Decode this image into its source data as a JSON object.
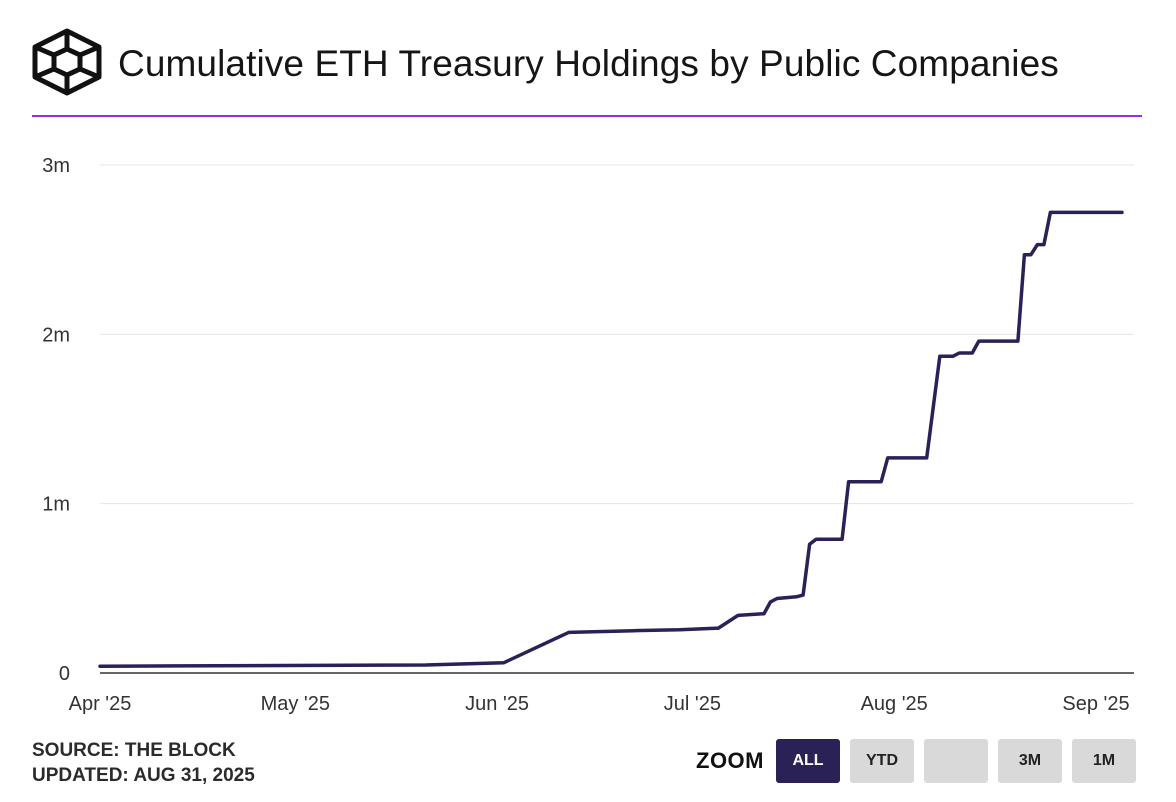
{
  "header": {
    "title": "Cumulative ETH Treasury Holdings by Public Companies",
    "logo_icon": "the-block-cube-icon"
  },
  "colors": {
    "line": "#2a2157",
    "accent_rule": "#9b2fe0",
    "grid": "#e4e4e4",
    "zoom_active_bg": "#2a2157",
    "zoom_bg": "#d9d9d9"
  },
  "chart_data": {
    "type": "line",
    "title": "Cumulative ETH Treasury Holdings by Public Companies",
    "xlabel": "",
    "ylabel": "",
    "xlim": [
      "2025-04-01",
      "2025-09-01"
    ],
    "ylim": [
      0,
      3000000
    ],
    "grid": true,
    "legend": "none",
    "y_ticks": [
      {
        "value": 0,
        "label": "0"
      },
      {
        "value": 1000000,
        "label": "1m"
      },
      {
        "value": 2000000,
        "label": "2m"
      },
      {
        "value": 3000000,
        "label": "3m"
      }
    ],
    "x_ticks": [
      {
        "date": "2025-04-01",
        "label": "Apr '25"
      },
      {
        "date": "2025-05-01",
        "label": "May '25"
      },
      {
        "date": "2025-06-01",
        "label": "Jun '25"
      },
      {
        "date": "2025-07-01",
        "label": "Jul '25"
      },
      {
        "date": "2025-08-01",
        "label": "Aug '25"
      },
      {
        "date": "2025-09-01",
        "label": "Sep '25"
      }
    ],
    "series": [
      {
        "values": [
          {
            "x": "2025-04-01",
            "y": 40000
          },
          {
            "x": "2025-04-13",
            "y": 42000
          },
          {
            "x": "2025-05-21",
            "y": 47000
          },
          {
            "x": "2025-06-02",
            "y": 60000
          },
          {
            "x": "2025-06-12",
            "y": 240000
          },
          {
            "x": "2025-06-22",
            "y": 250000
          },
          {
            "x": "2025-06-29",
            "y": 255000
          },
          {
            "x": "2025-07-05",
            "y": 265000
          },
          {
            "x": "2025-07-08",
            "y": 340000
          },
          {
            "x": "2025-07-12",
            "y": 350000
          },
          {
            "x": "2025-07-13",
            "y": 420000
          },
          {
            "x": "2025-07-14",
            "y": 440000
          },
          {
            "x": "2025-07-17",
            "y": 450000
          },
          {
            "x": "2025-07-18",
            "y": 460000
          },
          {
            "x": "2025-07-19",
            "y": 760000
          },
          {
            "x": "2025-07-20",
            "y": 790000
          },
          {
            "x": "2025-07-24",
            "y": 790000
          },
          {
            "x": "2025-07-25",
            "y": 1130000
          },
          {
            "x": "2025-07-30",
            "y": 1130000
          },
          {
            "x": "2025-07-31",
            "y": 1270000
          },
          {
            "x": "2025-08-06",
            "y": 1270000
          },
          {
            "x": "2025-08-08",
            "y": 1870000
          },
          {
            "x": "2025-08-10",
            "y": 1870000
          },
          {
            "x": "2025-08-11",
            "y": 1890000
          },
          {
            "x": "2025-08-13",
            "y": 1890000
          },
          {
            "x": "2025-08-14",
            "y": 1960000
          },
          {
            "x": "2025-08-20",
            "y": 1960000
          },
          {
            "x": "2025-08-21",
            "y": 2470000
          },
          {
            "x": "2025-08-22",
            "y": 2470000
          },
          {
            "x": "2025-08-23",
            "y": 2530000
          },
          {
            "x": "2025-08-24",
            "y": 2530000
          },
          {
            "x": "2025-08-25",
            "y": 2720000
          },
          {
            "x": "2025-09-05",
            "y": 2720000
          }
        ]
      }
    ]
  },
  "footer": {
    "source": "SOURCE: THE BLOCK",
    "updated": "UPDATED: AUG 31, 2025"
  },
  "zoom": {
    "label": "ZOOM",
    "buttons": [
      {
        "label": "ALL",
        "active": true
      },
      {
        "label": "YTD",
        "active": false
      },
      {
        "label": "",
        "active": false
      },
      {
        "label": "3M",
        "active": false
      },
      {
        "label": "1M",
        "active": false
      }
    ]
  }
}
